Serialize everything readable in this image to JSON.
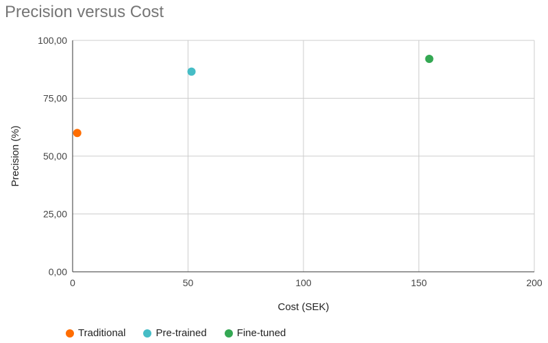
{
  "chart_data": {
    "type": "scatter",
    "title": "Precision versus Cost",
    "xlabel": "Cost (SEK)",
    "ylabel": "Precision (%)",
    "xlim": [
      0,
      200
    ],
    "ylim": [
      0,
      100
    ],
    "x_ticks": [
      0,
      50,
      100,
      150,
      200
    ],
    "x_tick_labels": [
      "0",
      "50",
      "100",
      "150",
      "200"
    ],
    "y_ticks": [
      0,
      25,
      50,
      75,
      100
    ],
    "y_tick_labels": [
      "0,00",
      "25,00",
      "50,00",
      "75,00",
      "100,00"
    ],
    "grid": true,
    "legend_position": "bottom-left",
    "series": [
      {
        "name": "Traditional",
        "color": "#ff6d01",
        "points": [
          {
            "x": 2,
            "y": 60
          }
        ]
      },
      {
        "name": "Pre-trained",
        "color": "#46bdc6",
        "points": [
          {
            "x": 51.5,
            "y": 86.5
          }
        ]
      },
      {
        "name": "Fine-tuned",
        "color": "#34a853",
        "points": [
          {
            "x": 154.5,
            "y": 92
          }
        ]
      }
    ]
  }
}
